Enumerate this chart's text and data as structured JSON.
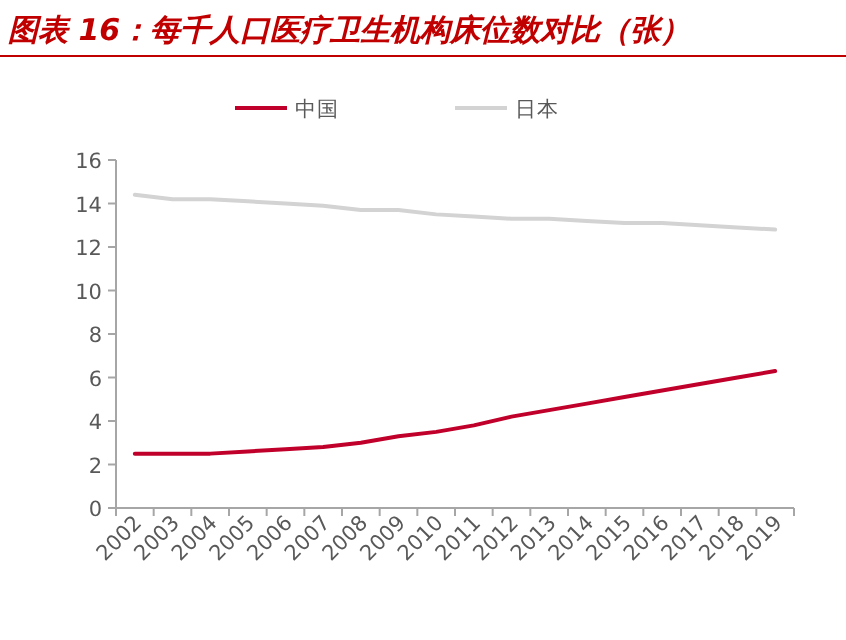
{
  "chart_data": {
    "type": "line",
    "title": "图表 16：每千人口医疗卫生机构床位数对比（张）",
    "categories": [
      "2002",
      "2003",
      "2004",
      "2005",
      "2006",
      "2007",
      "2008",
      "2009",
      "2010",
      "2011",
      "2012",
      "2013",
      "2014",
      "2015",
      "2016",
      "2017",
      "2018",
      "2019"
    ],
    "series": [
      {
        "name": "中国",
        "color": "#c0002a",
        "values": [
          2.5,
          2.5,
          2.5,
          2.6,
          2.7,
          2.8,
          3.0,
          3.3,
          3.5,
          3.8,
          4.2,
          4.5,
          4.8,
          5.1,
          5.4,
          5.7,
          6.0,
          6.3
        ]
      },
      {
        "name": "日本",
        "color": "#d3d3d3",
        "values": [
          14.4,
          14.2,
          14.2,
          14.1,
          14.0,
          13.9,
          13.7,
          13.7,
          13.5,
          13.4,
          13.3,
          13.3,
          13.2,
          13.1,
          13.1,
          13.0,
          12.9,
          12.8
        ]
      }
    ],
    "ylim": [
      0,
      16
    ],
    "yticks": [
      0,
      2,
      4,
      6,
      8,
      10,
      12,
      14,
      16
    ],
    "legend": "top",
    "grid": false,
    "marker": "none",
    "line_style": "solid"
  }
}
